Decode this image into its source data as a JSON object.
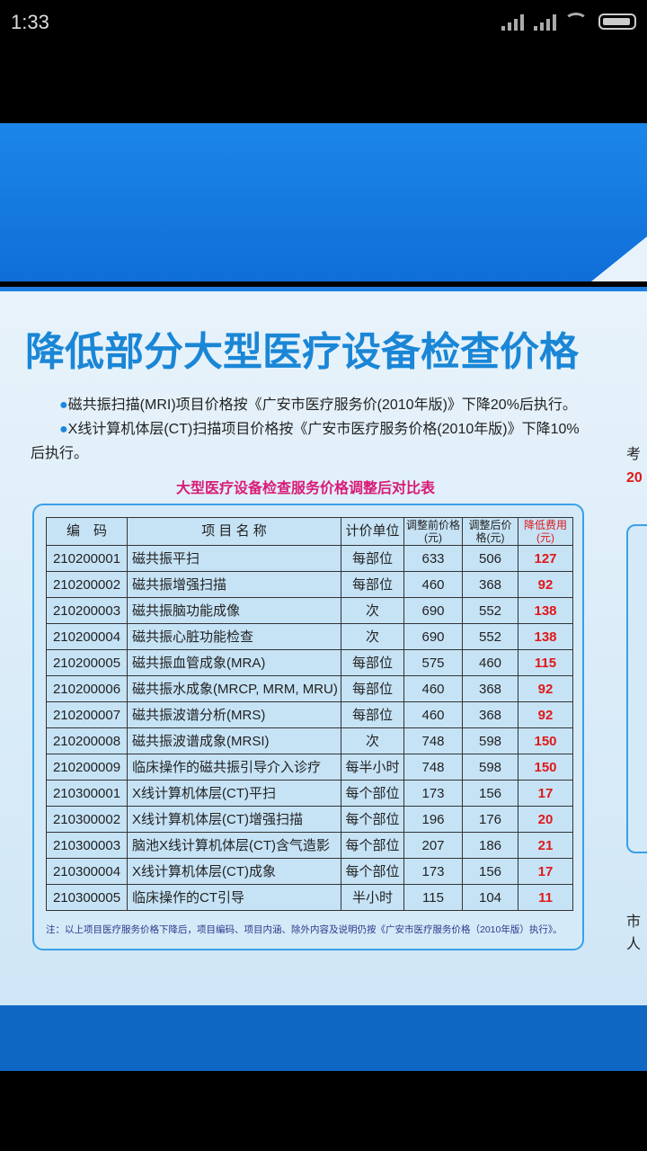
{
  "status": {
    "time": "1:33"
  },
  "title": "降低部分大型医疗设备检查价格",
  "paragraphs": [
    "磁共振扫描(MRI)项目价格按《广安市医疗服务价(2010年版)》下降20%后执行。",
    "X线计算机体层(CT)扫描项目价格按《广安市医疗服务价格(2010年版)》下降10%后执行。"
  ],
  "table_title": "大型医疗设备检查服务价格调整后对比表",
  "headers": [
    "编　码",
    "项 目 名 称",
    "计价单位",
    "调整前价格(元)",
    "调整后价格(元)",
    "降低费用(元)"
  ],
  "rows": [
    [
      "210200001",
      "磁共振平扫",
      "每部位",
      "633",
      "506",
      "127"
    ],
    [
      "210200002",
      "磁共振增强扫描",
      "每部位",
      "460",
      "368",
      "92"
    ],
    [
      "210200003",
      "磁共振脑功能成像",
      "次",
      "690",
      "552",
      "138"
    ],
    [
      "210200004",
      "磁共振心脏功能检查",
      "次",
      "690",
      "552",
      "138"
    ],
    [
      "210200005",
      "磁共振血管成象(MRA)",
      "每部位",
      "575",
      "460",
      "115"
    ],
    [
      "210200006",
      "磁共振水成象(MRCP, MRM, MRU)",
      "每部位",
      "460",
      "368",
      "92"
    ],
    [
      "210200007",
      "磁共振波谱分析(MRS)",
      "每部位",
      "460",
      "368",
      "92"
    ],
    [
      "210200008",
      "磁共振波谱成象(MRSI)",
      "次",
      "748",
      "598",
      "150"
    ],
    [
      "210200009",
      "临床操作的磁共振引导介入诊疗",
      "每半小时",
      "748",
      "598",
      "150"
    ],
    [
      "210300001",
      "X线计算机体层(CT)平扫",
      "每个部位",
      "173",
      "156",
      "17"
    ],
    [
      "210300002",
      "X线计算机体层(CT)增强扫描",
      "每个部位",
      "196",
      "176",
      "20"
    ],
    [
      "210300003",
      "脑池X线计算机体层(CT)含气造影",
      "每个部位",
      "207",
      "186",
      "21"
    ],
    [
      "210300004",
      "X线计算机体层(CT)成象",
      "每个部位",
      "173",
      "156",
      "17"
    ],
    [
      "210300005",
      "临床操作的CT引导",
      "半小时",
      "115",
      "104",
      "11"
    ]
  ],
  "note": "注：以上项目医疗服务价格下降后，项目编码、项目内涵、除外内容及说明仍按《广安市医疗服务价格（2010年版）执行》。",
  "right_fragments": [
    "考",
    "20",
    "市",
    "人"
  ]
}
